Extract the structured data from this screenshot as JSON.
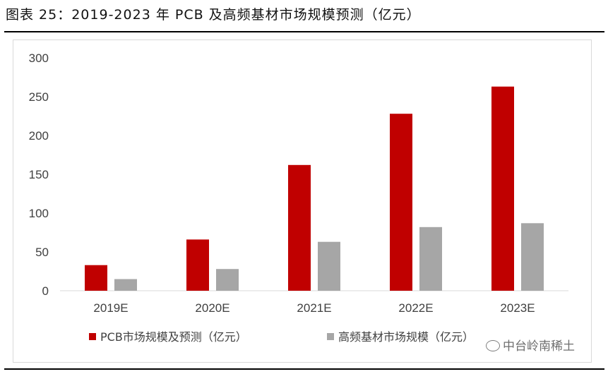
{
  "title": "图表 25：2019-2023 年 PCB 及高频基材市场规模预测（亿元）",
  "watermark": "中台岭南稀土",
  "chart_data": {
    "type": "bar",
    "categories": [
      "2019E",
      "2020E",
      "2021E",
      "2022E",
      "2023E"
    ],
    "series": [
      {
        "name": "PCB市场规模及预测（亿元）",
        "values": [
          33,
          66,
          162,
          228,
          263
        ],
        "color": "#c00000"
      },
      {
        "name": "高频基材市场规模（亿元）",
        "values": [
          15,
          28,
          63,
          82,
          87
        ],
        "color": "#a6a6a6"
      }
    ],
    "yticks": [
      0,
      50,
      100,
      150,
      200,
      250,
      300
    ],
    "ylim": [
      0,
      300
    ],
    "grid": false,
    "legend": "bottom"
  }
}
